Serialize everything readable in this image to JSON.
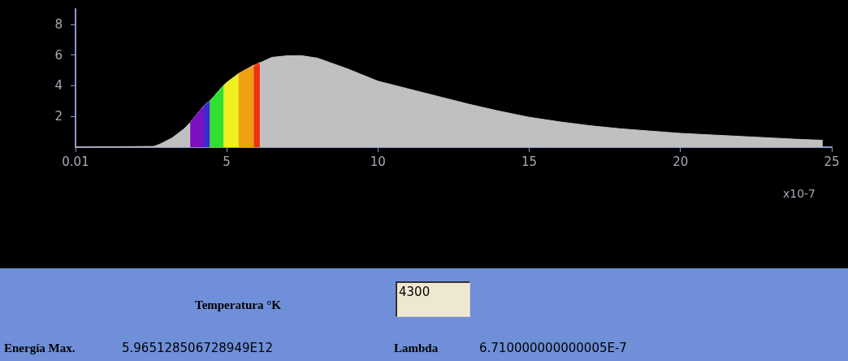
{
  "chart_data": {
    "type": "area",
    "xlabel": "x10-7",
    "xlim": [
      0.01,
      25
    ],
    "xticks": [
      0.01,
      5,
      10,
      15,
      20,
      25
    ],
    "ylim": [
      0,
      9
    ],
    "yticks": [
      2,
      4,
      6,
      8
    ],
    "grid": false,
    "series": [
      {
        "color": "#c0c0c0",
        "x": [
          0.01,
          2.6,
          2.8,
          3.2,
          3.6,
          3.8,
          4.0,
          4.3,
          4.5,
          4.8,
          5.0,
          5.5,
          6.0,
          6.5,
          7.0,
          7.5,
          8.0,
          9.0,
          10.0,
          11.0,
          12.0,
          13.0,
          14.0,
          15.0,
          16.0,
          17.0,
          18.0,
          19.0,
          20.0,
          21.0,
          22.0,
          23.0,
          24.0,
          24.7
        ],
        "values": [
          0,
          0.05,
          0.2,
          0.6,
          1.2,
          1.6,
          2.1,
          2.8,
          3.1,
          3.8,
          4.2,
          4.9,
          5.4,
          5.85,
          5.95,
          5.95,
          5.8,
          5.1,
          4.3,
          3.8,
          3.3,
          2.8,
          2.35,
          1.95,
          1.65,
          1.4,
          1.2,
          1.05,
          0.9,
          0.8,
          0.7,
          0.6,
          0.5,
          0.45
        ]
      },
      {
        "color": "#7a10c0",
        "x": [
          3.8,
          4.0,
          4.25
        ],
        "values": [
          1.6,
          2.1,
          2.7
        ]
      },
      {
        "color": "#3a2ad0",
        "x": [
          4.25,
          4.45
        ],
        "values": [
          2.7,
          3.0
        ]
      },
      {
        "color": "#30e030",
        "x": [
          4.45,
          4.8,
          4.9
        ],
        "values": [
          3.0,
          3.8,
          4.0
        ]
      },
      {
        "color": "#f0f020",
        "x": [
          4.9,
          5.0,
          5.4
        ],
        "values": [
          4.0,
          4.2,
          4.8
        ]
      },
      {
        "color": "#f0a010",
        "x": [
          5.4,
          5.5,
          5.9
        ],
        "values": [
          4.8,
          4.9,
          5.35
        ]
      },
      {
        "color": "#f03010",
        "x": [
          5.9,
          6.0,
          6.1
        ],
        "values": [
          5.35,
          5.4,
          5.55
        ]
      }
    ],
    "annotations": [
      "Temperatura °K",
      "4300",
      "Energía Max.",
      "5.965128506728949E12",
      "Lambda",
      "6.710000000000005E-7"
    ]
  }
}
